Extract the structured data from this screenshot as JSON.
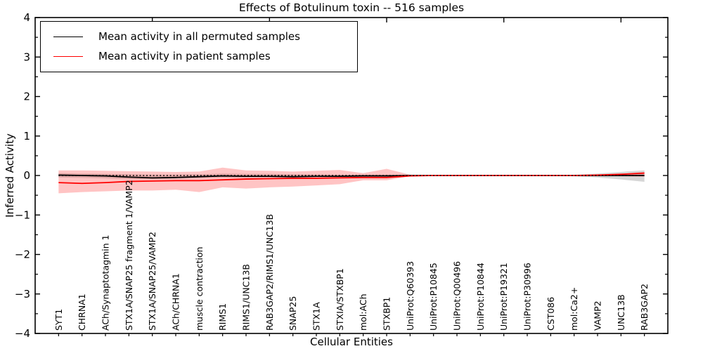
{
  "figure": {
    "title": "Effects of Botulinum toxin -- 516 samples"
  },
  "axes": {
    "y_label": "Inferred Activity",
    "x_label": "Cellular Entities",
    "y_tick_labels": [
      "−4",
      "−3",
      "−2",
      "−1",
      "0",
      "1",
      "2",
      "3",
      "4"
    ]
  },
  "legend": {
    "items": [
      {
        "label": "Mean activity in all permuted samples",
        "color": "#000000"
      },
      {
        "label": "Mean activity in patient samples",
        "color": "#ff0000"
      }
    ]
  },
  "chart_data": {
    "type": "line",
    "title": "Effects of Botulinum toxin -- 516 samples",
    "xlabel": "Cellular Entities",
    "ylabel": "Inferred Activity",
    "ylim": [
      -4,
      4
    ],
    "y_ticks": [
      -4,
      -3,
      -2,
      -1,
      0,
      1,
      2,
      3,
      4
    ],
    "x_tick_rotation": 90,
    "grid": false,
    "legend_position": "upper left",
    "zero_reference_line": {
      "y": 0,
      "style": "dotted",
      "color": "#000000"
    },
    "categories": [
      "SYT1",
      "CHRNA1",
      "ACh/Synaptotagmin 1",
      "STX1A/SNAP25 fragment 1/VAMP2",
      "STX1A/SNAP25/VAMP2",
      "ACh/CHRNA1",
      "muscle contraction",
      "RIMS1",
      "RIMS1/UNC13B",
      "RAB3GAP2/RIMS1/UNC13B",
      "SNAP25",
      "STX1A",
      "STXIA/STXBP1",
      "mol:ACh",
      "STXBP1",
      "UniProt:Q60393",
      "UniProt:P10845",
      "UniProt:Q00496",
      "UniProt:P10844",
      "UniProt:P19321",
      "UniProt:P30996",
      "CST086",
      "mol:Ca2+",
      "VAMP2",
      "UNC13B",
      "RAB3GAP2"
    ],
    "series": [
      {
        "name": "Mean activity in all permuted samples",
        "color": "#000000",
        "style": "solid",
        "values": [
          0.01,
          0.0,
          -0.01,
          -0.04,
          -0.06,
          -0.05,
          -0.03,
          -0.01,
          -0.02,
          -0.02,
          -0.03,
          -0.02,
          -0.02,
          -0.01,
          -0.01,
          0.0,
          0.0,
          0.0,
          0.0,
          0.0,
          0.0,
          0.0,
          0.0,
          0.0,
          0.0,
          0.0
        ]
      },
      {
        "name": "Mean activity in patient samples",
        "color": "#ff0000",
        "style": "solid",
        "values": [
          -0.18,
          -0.2,
          -0.18,
          -0.15,
          -0.14,
          -0.13,
          -0.13,
          -0.11,
          -0.09,
          -0.08,
          -0.07,
          -0.07,
          -0.06,
          -0.05,
          -0.05,
          -0.01,
          0.0,
          0.0,
          0.0,
          0.0,
          0.0,
          0.0,
          0.0,
          0.01,
          0.03,
          0.06
        ]
      }
    ],
    "bands": [
      {
        "name": "permuted samples spread",
        "color": "#808080",
        "opacity": 0.32,
        "upper": [
          0.06,
          0.05,
          0.04,
          0.03,
          0.02,
          0.02,
          0.03,
          0.05,
          0.04,
          0.04,
          0.03,
          0.03,
          0.02,
          0.02,
          0.02,
          0.01,
          0.005,
          0.005,
          0.005,
          0.005,
          0.005,
          0.005,
          0.02,
          0.05,
          0.09,
          0.13
        ],
        "lower": [
          -0.05,
          -0.06,
          -0.07,
          -0.09,
          -0.1,
          -0.08,
          -0.07,
          -0.05,
          -0.06,
          -0.05,
          -0.05,
          -0.04,
          -0.05,
          -0.03,
          -0.03,
          -0.01,
          -0.005,
          -0.005,
          -0.005,
          -0.005,
          -0.005,
          -0.005,
          -0.02,
          -0.05,
          -0.1,
          -0.16
        ]
      },
      {
        "name": "patient samples spread",
        "color": "#ff2a2a",
        "opacity": 0.28,
        "upper": [
          0.13,
          0.13,
          0.12,
          0.11,
          0.1,
          0.09,
          0.1,
          0.2,
          0.13,
          0.12,
          0.1,
          0.12,
          0.14,
          0.06,
          0.17,
          0.02,
          0.005,
          0.005,
          0.005,
          0.005,
          0.005,
          0.005,
          0.01,
          0.02,
          0.04,
          0.09
        ],
        "lower": [
          -0.45,
          -0.42,
          -0.4,
          -0.38,
          -0.38,
          -0.36,
          -0.42,
          -0.3,
          -0.33,
          -0.3,
          -0.28,
          -0.25,
          -0.22,
          -0.12,
          -0.12,
          -0.02,
          -0.005,
          -0.005,
          -0.005,
          -0.005,
          -0.005,
          -0.005,
          -0.01,
          -0.01,
          -0.02,
          -0.03
        ]
      }
    ]
  }
}
